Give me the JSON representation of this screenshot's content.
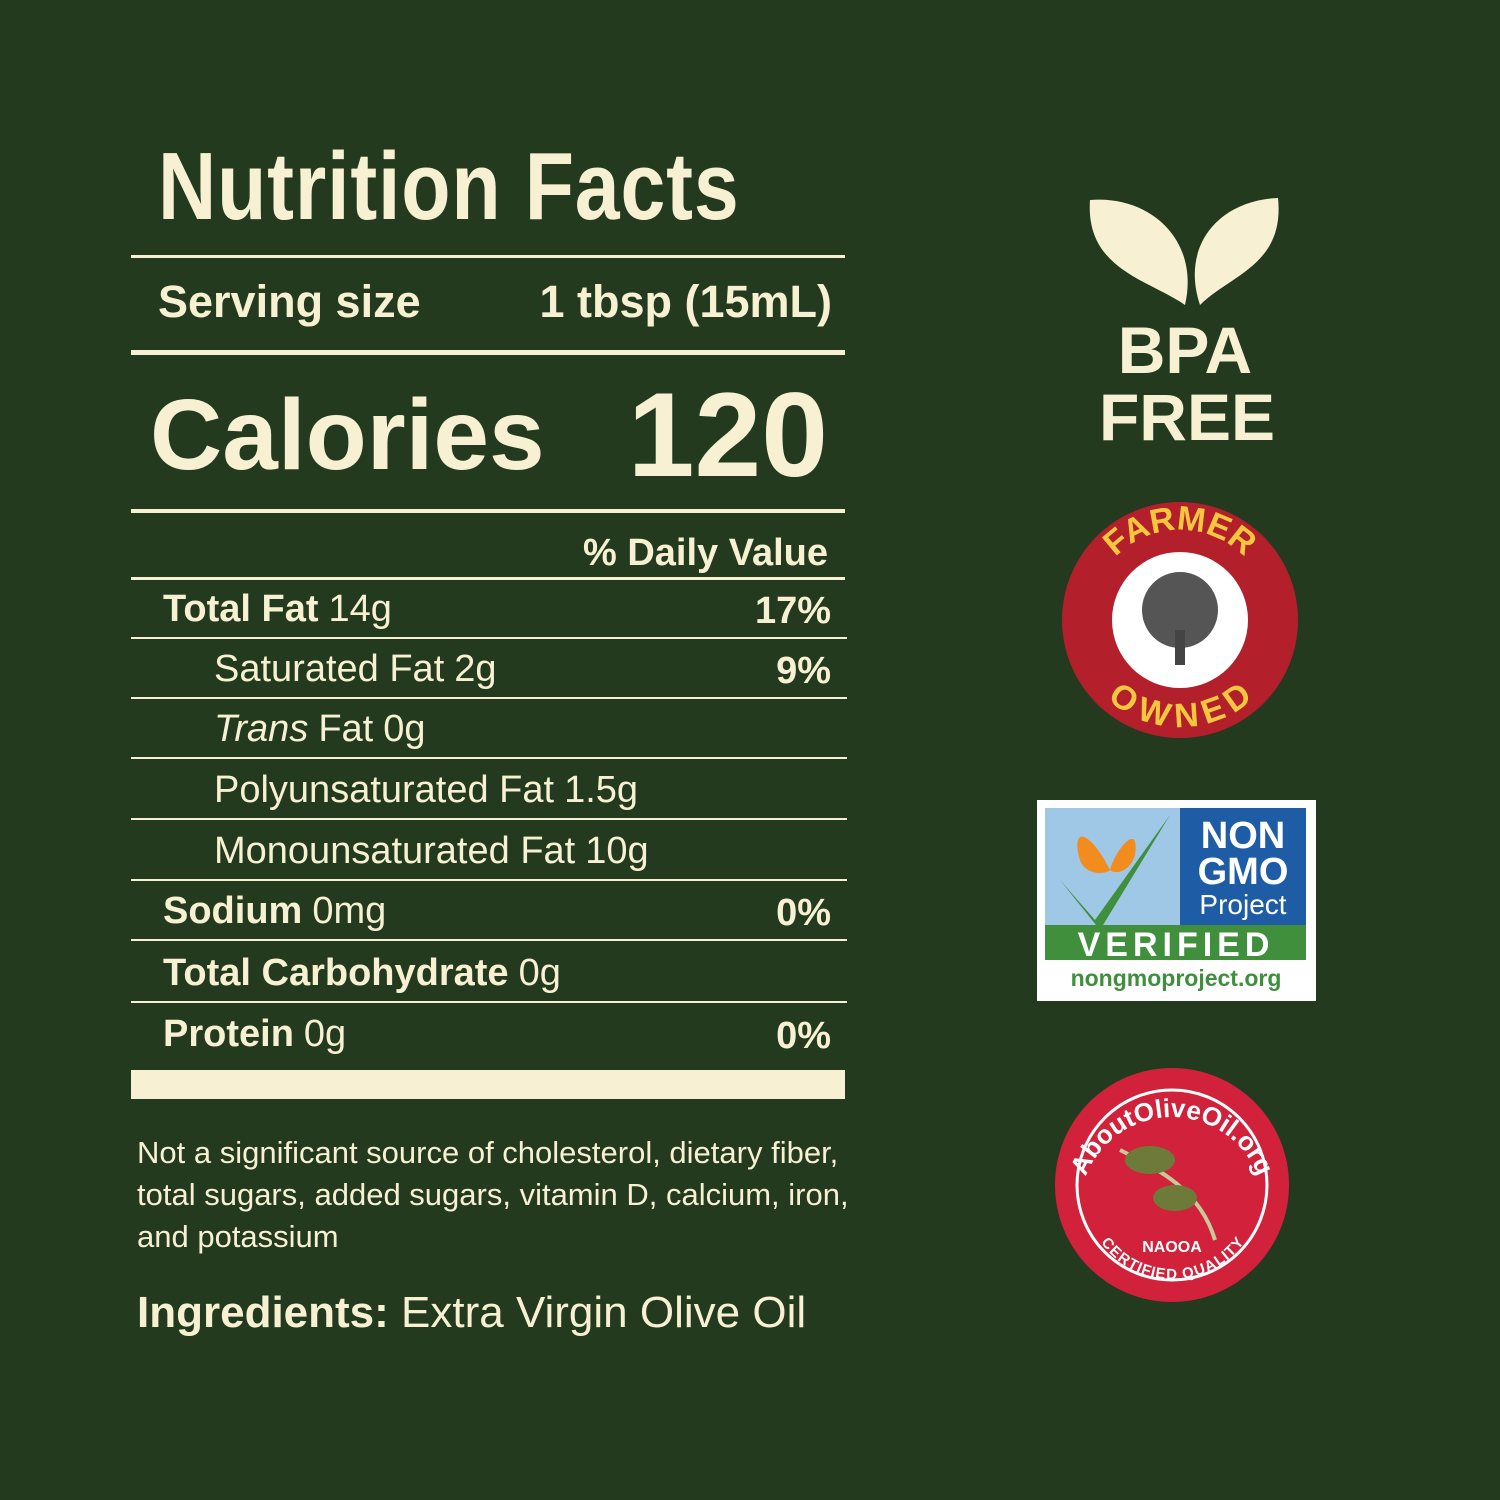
{
  "nutrition_facts": {
    "title": "Nutrition Facts",
    "serving_label": "Serving size",
    "serving_size": "1 tbsp (15mL)",
    "calories_label": "Calories",
    "calories": 120,
    "daily_value_header": "% Daily Value",
    "rows": [
      {
        "label": "Total Fat",
        "amount": "14g",
        "dv": "17%",
        "bold": true
      },
      {
        "label": "Saturated Fat",
        "amount": "2g",
        "dv": "9%",
        "indent": true
      },
      {
        "label_italic": "Trans",
        "label": "Fat",
        "amount": "0g",
        "indent": true
      },
      {
        "label": "Polyunsaturated Fat",
        "amount": "1.5g",
        "indent": true
      },
      {
        "label": "Monounsaturated Fat",
        "amount": "10g",
        "indent": true
      },
      {
        "label": "Sodium",
        "amount": "0mg",
        "dv": "0%",
        "bold": true
      },
      {
        "label": "Total Carbohydrate",
        "amount": "0g",
        "bold": true
      },
      {
        "label": "Protein",
        "amount": "0g",
        "dv": "0%",
        "bold": true
      }
    ],
    "footnote": "Not a significant source of cholesterol, dietary fiber, total sugars, added sugars, vitamin D, calcium, iron, and potassium",
    "ingredients_label": "Ingredients:",
    "ingredients": "Extra Virgin Olive Oil"
  },
  "badges": {
    "bpa": {
      "line1": "BPA",
      "line2": "FREE"
    },
    "farmer": {
      "top": "FARMER",
      "bottom": "OWNED"
    },
    "non_gmo": {
      "line1": "NON",
      "line2": "GMO",
      "line3": "Project",
      "verified": "VERIFIED",
      "url": "nongmoproject.org"
    },
    "olive": {
      "top": "AboutOliveOil.org",
      "org": "NAOOA",
      "bottom": "CERTIFIED QUALITY"
    }
  }
}
